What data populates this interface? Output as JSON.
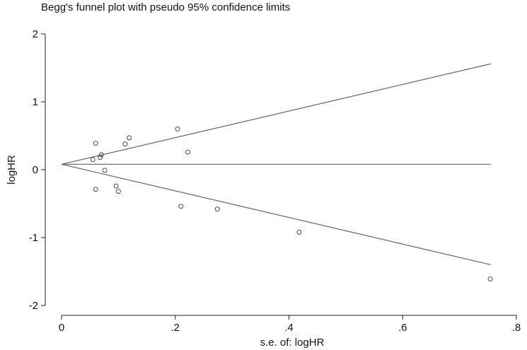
{
  "chart_data": {
    "type": "scatter",
    "title": "Begg's funnel plot with pseudo 95% confidence limits",
    "xlabel": "s.e. of: logHR",
    "ylabel": "logHR",
    "xlim": [
      0,
      0.8
    ],
    "ylim": [
      -2,
      2
    ],
    "x_ticks": [
      {
        "value": 0,
        "label": "0"
      },
      {
        "value": 0.2,
        "label": ".2"
      },
      {
        "value": 0.4,
        "label": ".4"
      },
      {
        "value": 0.6,
        "label": ".6"
      },
      {
        "value": 0.8,
        "label": ".8"
      }
    ],
    "y_ticks": [
      {
        "value": -2,
        "label": "-2"
      },
      {
        "value": -1,
        "label": "-1"
      },
      {
        "value": 0,
        "label": "0"
      },
      {
        "value": 1,
        "label": "1"
      },
      {
        "value": 2,
        "label": "2"
      }
    ],
    "grid": false,
    "pooled_estimate": 0.08,
    "funnel": {
      "center_line": [
        [
          0,
          0.08
        ],
        [
          0.755,
          0.08
        ]
      ],
      "upper_limit": [
        [
          0,
          0.08
        ],
        [
          0.755,
          1.56
        ]
      ],
      "lower_limit": [
        [
          0,
          0.08
        ],
        [
          0.755,
          -1.4
        ]
      ]
    },
    "points": [
      {
        "x": 0.055,
        "y": 0.15
      },
      {
        "x": 0.06,
        "y": 0.39
      },
      {
        "x": 0.06,
        "y": -0.29
      },
      {
        "x": 0.068,
        "y": 0.18
      },
      {
        "x": 0.07,
        "y": 0.22
      },
      {
        "x": 0.076,
        "y": -0.01
      },
      {
        "x": 0.096,
        "y": -0.24
      },
      {
        "x": 0.1,
        "y": -0.32
      },
      {
        "x": 0.112,
        "y": 0.38
      },
      {
        "x": 0.119,
        "y": 0.47
      },
      {
        "x": 0.204,
        "y": 0.6
      },
      {
        "x": 0.21,
        "y": -0.54
      },
      {
        "x": 0.222,
        "y": 0.26
      },
      {
        "x": 0.274,
        "y": -0.58
      },
      {
        "x": 0.418,
        "y": -0.92
      },
      {
        "x": 0.754,
        "y": -1.61
      }
    ]
  }
}
